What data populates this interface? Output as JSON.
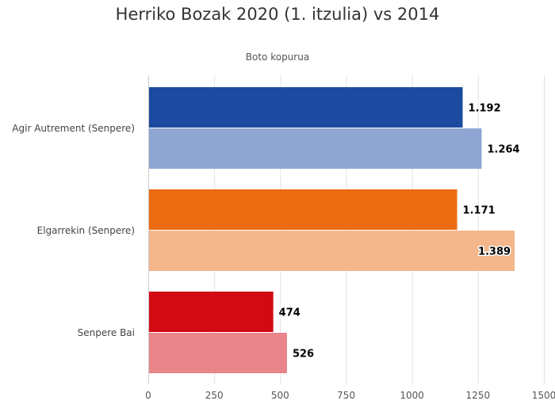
{
  "title": "Herriko Bozak 2020 (1. itzulia) vs 2014",
  "chart_data": {
    "type": "bar",
    "orientation": "horizontal",
    "title": "Herriko Bozak 2020 (1. itzulia) vs 2014",
    "value_axis_label": "Boto kopurua",
    "value_axis_position": "top",
    "categories": [
      "Agir Autrement (Senpere)",
      "Elgarrekin (Senpere)",
      "Senpere Bai"
    ],
    "xlim": [
      0,
      1500
    ],
    "ticks": [
      0,
      250,
      500,
      750,
      1000,
      1250,
      1500
    ],
    "tick_labels": [
      "0",
      "250",
      "500",
      "750",
      "1000",
      "1250",
      "1500"
    ],
    "grid": true,
    "legend": "none",
    "series": [
      {
        "values": [
          1192,
          1171,
          474
        ],
        "labels": [
          "1.192",
          "1.171",
          "474"
        ],
        "colors": [
          "#1c4aa0",
          "#ec6a10",
          "#d20a14"
        ]
      },
      {
        "values": [
          1264,
          1389,
          526
        ],
        "labels": [
          "1.264",
          "1.389",
          "526"
        ],
        "colors": [
          "#8fa6d3",
          "#f4b68b",
          "#e8848a"
        ]
      }
    ]
  }
}
